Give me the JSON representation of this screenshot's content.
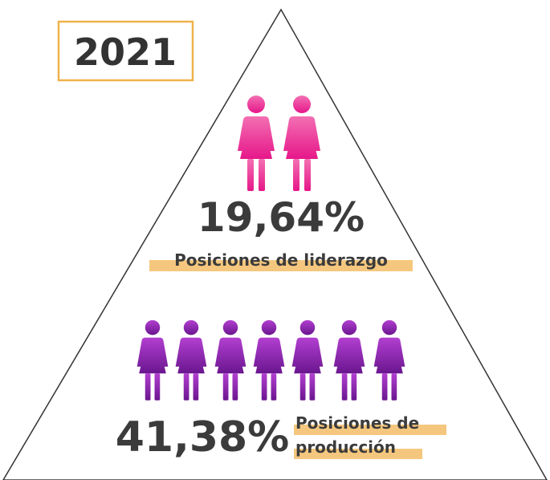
{
  "year": "2021",
  "levels": [
    {
      "value": "19,64%",
      "label": "Posiciones de liderazgo"
    },
    {
      "value": "41,38%",
      "label_lines": [
        "Posiciones de",
        "producción"
      ]
    }
  ]
}
